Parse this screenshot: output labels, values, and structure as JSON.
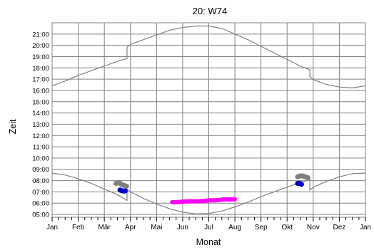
{
  "chart_data": {
    "type": "line",
    "title": "20: W74",
    "xlabel": "Monat",
    "ylabel": "Zeit",
    "x_tick_labels": [
      "Jan",
      "Feb",
      "Mär",
      "Apr",
      "Mai",
      "Jun",
      "Jul",
      "Aug",
      "Sep",
      "Okt",
      "Nov",
      "Dez",
      "Jan"
    ],
    "y_tick_labels": [
      "05:00",
      "06:00",
      "07:00",
      "08:00",
      "09:00",
      "10:00",
      "11:00",
      "12:00",
      "13:00",
      "14:00",
      "15:00",
      "16:00",
      "17:00",
      "18:00",
      "19:00",
      "20:00",
      "21:00"
    ],
    "xlim": [
      0,
      12
    ],
    "ylim": [
      "04:45",
      "22:00"
    ],
    "grid": true,
    "colors": {
      "line": "#808080",
      "grid": "#808080",
      "gray": "#808080",
      "blue": "#0000c8",
      "magenta": "#ff00ff"
    },
    "series": [
      {
        "kind": "sunset-line",
        "x": [
          0,
          0.5,
          1,
          1.5,
          2,
          2.5,
          2.87,
          2.87,
          3,
          3.5,
          4,
          4.5,
          5,
          5.5,
          6,
          6.5,
          7,
          7.5,
          8,
          8.5,
          9,
          9.5,
          9.87,
          9.87,
          10,
          10.5,
          11,
          11.5,
          12
        ],
        "y": [
          "16:25",
          "16:50",
          "17:20",
          "17:45",
          "18:10",
          "18:35",
          "18:50",
          "19:50",
          "20:05",
          "20:30",
          "20:55",
          "21:20",
          "21:35",
          "21:43",
          "21:43",
          "21:30",
          "21:00",
          "20:30",
          "19:55",
          "19:20",
          "18:45",
          "18:10",
          "17:50",
          "17:15",
          "16:58",
          "16:32",
          "16:18",
          "16:13",
          "16:25"
        ]
      },
      {
        "kind": "sunrise-line",
        "x": [
          0,
          0.5,
          1,
          1.5,
          2,
          2.5,
          2.87,
          2.87,
          3,
          3.5,
          4,
          4.5,
          5,
          5.5,
          6,
          6.5,
          7,
          7.5,
          8,
          8.5,
          9,
          9.5,
          9.87,
          9.87,
          10,
          10.5,
          11,
          11.5,
          12
        ],
        "y": [
          "08:40",
          "08:30",
          "08:10",
          "07:45",
          "07:15",
          "06:45",
          "06:15",
          "07:15",
          "07:00",
          "06:25",
          "05:55",
          "05:30",
          "05:12",
          "05:03",
          "05:05",
          "05:18",
          "05:40",
          "06:05",
          "06:35",
          "07:00",
          "07:25",
          "07:50",
          "08:05",
          "07:10",
          "07:25",
          "07:55",
          "08:20",
          "08:37",
          "08:40"
        ]
      }
    ],
    "clusters": [
      {
        "color": "gray",
        "x": [
          2.45,
          2.55,
          2.65,
          2.75,
          2.85
        ],
        "y": [
          "07:45",
          "07:50",
          "07:40",
          "07:35",
          "07:30"
        ]
      },
      {
        "color": "blue",
        "x": [
          2.6,
          2.7,
          2.8
        ],
        "y": [
          "07:10",
          "07:05",
          "07:05"
        ]
      },
      {
        "color": "magenta",
        "x": [
          4.6,
          4.8,
          5,
          5.2,
          5.4,
          5.6,
          5.8,
          6,
          6.2,
          6.4,
          6.6,
          6.8,
          7
        ],
        "y": [
          "06:05",
          "06:05",
          "06:08",
          "06:10",
          "06:10",
          "06:10",
          "06:12",
          "06:15",
          "06:15",
          "06:17",
          "06:20",
          "06:20",
          "06:20"
        ]
      },
      {
        "color": "gray",
        "x": [
          9.4,
          9.5,
          9.6,
          9.7,
          9.8
        ],
        "y": [
          "08:20",
          "08:25",
          "08:25",
          "08:20",
          "08:15"
        ]
      },
      {
        "color": "blue",
        "x": [
          9.4,
          9.5,
          9.55
        ],
        "y": [
          "07:45",
          "07:45",
          "07:40"
        ]
      }
    ]
  }
}
